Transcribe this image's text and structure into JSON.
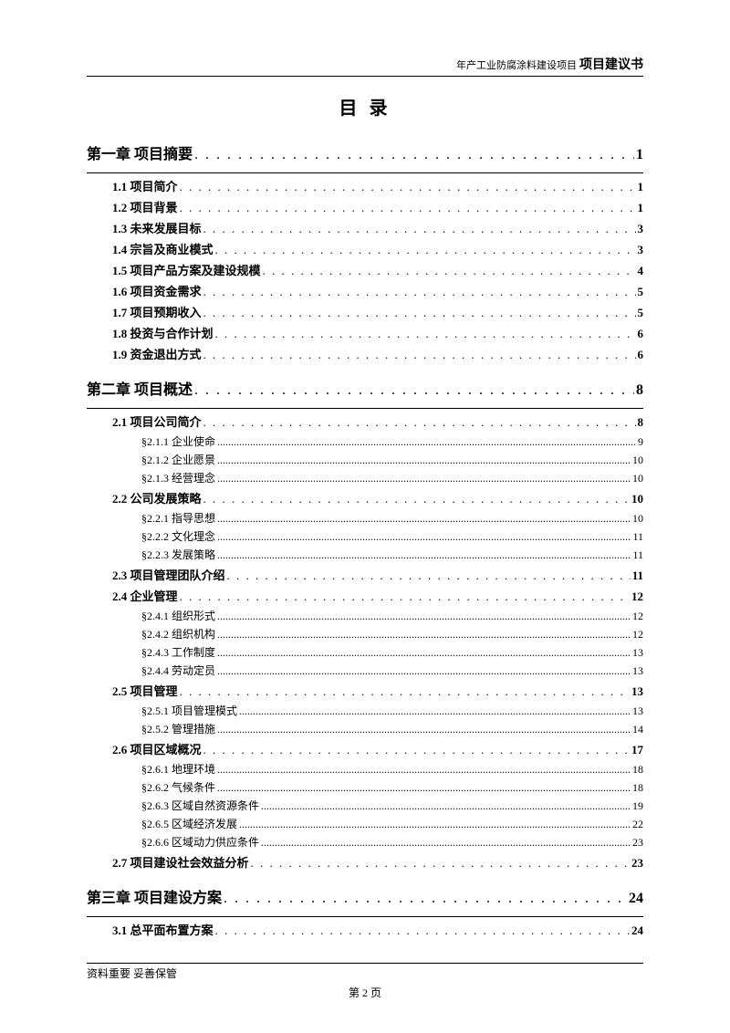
{
  "header": {
    "small": "年产工业防腐涂料建设项目",
    "bold": "项目建议书"
  },
  "title": "目 录",
  "chapters": [
    {
      "label": "第一章 项目摘要",
      "page": "1",
      "sections": [
        {
          "label": "1.1 项目简介",
          "page": "1",
          "subs": []
        },
        {
          "label": "1.2 项目背景",
          "page": "1",
          "subs": []
        },
        {
          "label": "1.3 未来发展目标",
          "page": "3",
          "subs": []
        },
        {
          "label": "1.4 宗旨及商业模式",
          "page": "3",
          "subs": []
        },
        {
          "label": "1.5 项目产品方案及建设规模",
          "page": "4",
          "subs": []
        },
        {
          "label": "1.6 项目资金需求",
          "page": "5",
          "subs": []
        },
        {
          "label": "1.7 项目预期收入",
          "page": "5",
          "subs": []
        },
        {
          "label": "1.8 投资与合作计划",
          "page": "6",
          "subs": []
        },
        {
          "label": "1.9 资金退出方式",
          "page": "6",
          "subs": []
        }
      ]
    },
    {
      "label": "第二章 项目概述",
      "page": "8",
      "sections": [
        {
          "label": "2.1 项目公司简介",
          "page": "8",
          "subs": [
            {
              "label": "§2.1.1 企业使命",
              "page": "9"
            },
            {
              "label": "§2.1.2 企业愿景",
              "page": "10"
            },
            {
              "label": "§2.1.3 经营理念",
              "page": "10"
            }
          ]
        },
        {
          "label": "2.2 公司发展策略",
          "page": "10",
          "subs": [
            {
              "label": "§2.2.1 指导思想",
              "page": "10"
            },
            {
              "label": "§2.2.2 文化理念",
              "page": "11"
            },
            {
              "label": "§2.2.3 发展策略",
              "page": "11"
            }
          ]
        },
        {
          "label": "2.3 项目管理团队介绍",
          "page": "11",
          "subs": []
        },
        {
          "label": "2.4 企业管理",
          "page": "12",
          "subs": [
            {
              "label": "§2.4.1 组织形式",
              "page": "12"
            },
            {
              "label": "§2.4.2 组织机构",
              "page": "12"
            },
            {
              "label": "§2.4.3 工作制度",
              "page": "13"
            },
            {
              "label": "§2.4.4 劳动定员",
              "page": "13"
            }
          ]
        },
        {
          "label": "2.5 项目管理",
          "page": "13",
          "subs": [
            {
              "label": "§2.5.1 项目管理模式",
              "page": "13"
            },
            {
              "label": "§2.5.2 管理措施",
              "page": "14"
            }
          ]
        },
        {
          "label": "2.6 项目区域概况",
          "page": "17",
          "subs": [
            {
              "label": "§2.6.1 地理环境",
              "page": "18"
            },
            {
              "label": "§2.6.2 气候条件",
              "page": "18"
            },
            {
              "label": "§2.6.3 区域自然资源条件",
              "page": "19"
            },
            {
              "label": "§2.6.5 区域经济发展",
              "page": "22"
            },
            {
              "label": "§2.6.6 区域动力供应条件",
              "page": "23"
            }
          ]
        },
        {
          "label": "2.7 项目建设社会效益分析",
          "page": "23",
          "subs": []
        }
      ]
    },
    {
      "label": "第三章 项目建设方案",
      "page": "24",
      "sections": [
        {
          "label": "3.1 总平面布置方案",
          "page": "24",
          "subs": []
        }
      ]
    }
  ],
  "footer_note": "资料重要  妥善保管",
  "page_number": "第 2 页"
}
